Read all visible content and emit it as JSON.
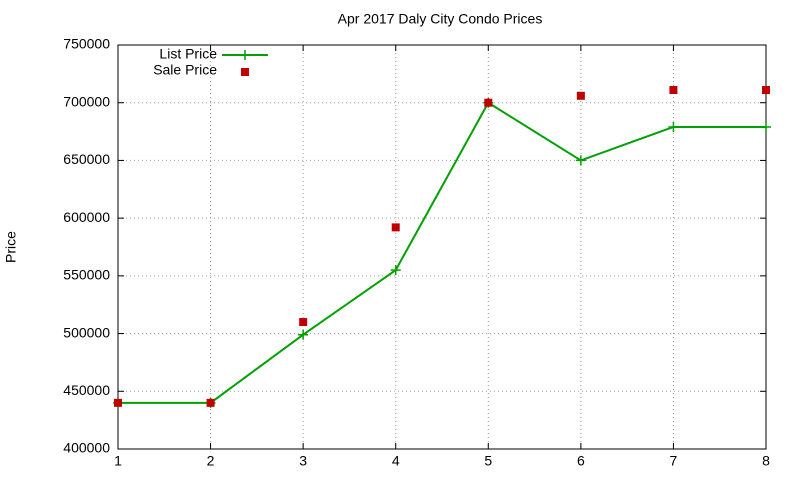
{
  "chart_data": {
    "type": "line",
    "title": "Apr 2017 Daly City Condo Prices",
    "y_label": "Price",
    "x": [
      1,
      2,
      3,
      4,
      5,
      6,
      7,
      8
    ],
    "series": [
      {
        "name": "List Price",
        "color": "#00a000",
        "style": "linespoints",
        "values": [
          440000,
          440000,
          499000,
          555000,
          700000,
          650000,
          679000,
          679000
        ]
      },
      {
        "name": "Sale Price",
        "color": "#c00000",
        "style": "points",
        "values": [
          440000,
          440000,
          510000,
          592000,
          700000,
          706000,
          711000,
          711000
        ]
      }
    ],
    "xlim": [
      1,
      8
    ],
    "xticks": [
      1,
      2,
      3,
      4,
      5,
      6,
      7,
      8
    ],
    "ylim": [
      400000,
      750000
    ],
    "yticks": [
      400000,
      450000,
      500000,
      550000,
      600000,
      650000,
      700000,
      750000
    ],
    "grid": true,
    "legend": "top-left"
  }
}
